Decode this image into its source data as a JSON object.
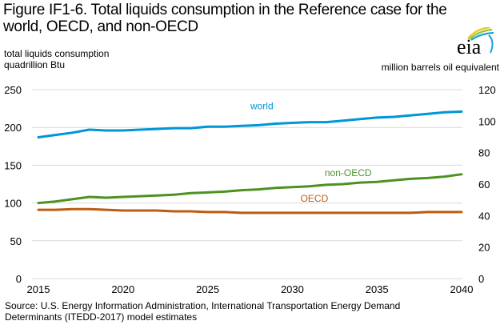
{
  "header": {
    "title": "Figure IF1-6. Total liquids consumption in the Reference case for the world, OECD, and non-OECD",
    "logo_text": "eia",
    "logo_icon": "eia-logo-icon"
  },
  "footer": {
    "source_line1": "Source: U.S. Energy Information  Administration, International  Transportation  Energy Demand",
    "source_line2": "Determinants  (ITEDD-2017)  model estimates"
  },
  "chart_data": {
    "type": "line",
    "title": "Figure IF1-6. Total liquids consumption in the Reference case for the world, OECD, and non-OECD",
    "xlabel": "",
    "ylabel": "total liquids consumption\nquadrillion  Btu",
    "ylabel_line1": "total liquids consumption",
    "ylabel_line2": "quadrillion  Btu",
    "y2label": "million barrels  oil equivalent",
    "ylim": [
      0,
      250
    ],
    "y2lim": [
      0,
      120
    ],
    "xlim": [
      2015,
      2040
    ],
    "grid": true,
    "legend": "inline labels",
    "x_ticks": [
      "2015",
      "2020",
      "2025",
      "2030",
      "2035",
      "2040"
    ],
    "y_ticks": [
      "0",
      "50",
      "100",
      "150",
      "200",
      "250"
    ],
    "y2_ticks": [
      "0",
      "20",
      "40",
      "60",
      "80",
      "100",
      "120"
    ],
    "x": [
      2015,
      2016,
      2017,
      2018,
      2019,
      2020,
      2021,
      2022,
      2023,
      2024,
      2025,
      2026,
      2027,
      2028,
      2029,
      2030,
      2031,
      2032,
      2033,
      2034,
      2035,
      2036,
      2037,
      2038,
      2039,
      2040
    ],
    "series": [
      {
        "name": "world",
        "color": "#0096d7",
        "values": [
          187,
          190,
          193,
          197,
          196,
          196,
          197,
          198,
          199,
          199,
          201,
          201,
          202,
          203,
          205,
          206,
          207,
          207,
          209,
          211,
          213,
          214,
          216,
          218,
          220,
          221
        ]
      },
      {
        "name": "non-OECD",
        "color": "#4d9221",
        "values": [
          100,
          102,
          105,
          108,
          107,
          108,
          109,
          110,
          111,
          113,
          114,
          115,
          117,
          118,
          120,
          121,
          122,
          124,
          125,
          127,
          128,
          130,
          132,
          133,
          135,
          138
        ]
      },
      {
        "name": "OECD",
        "color": "#bd5c12",
        "values": [
          91,
          91,
          92,
          92,
          91,
          90,
          90,
          90,
          89,
          89,
          88,
          88,
          87,
          87,
          87,
          87,
          87,
          87,
          87,
          87,
          87,
          87,
          87,
          88,
          88,
          88
        ]
      }
    ]
  }
}
